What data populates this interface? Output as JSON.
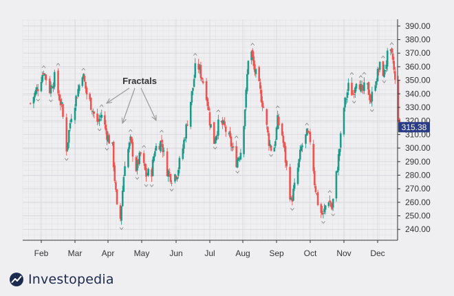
{
  "brand": {
    "name": "Investopedia",
    "logo": "investopedia-logo-icon"
  },
  "chart_data": {
    "type": "candlestick",
    "title": "",
    "xlabel": "",
    "ylabel": "",
    "x_ticks": [
      "Feb",
      "Mar",
      "Apr",
      "May",
      "Jun",
      "Jul",
      "Aug",
      "Sep",
      "Oct",
      "Nov",
      "Dec"
    ],
    "y_ticks": [
      240,
      250,
      260,
      270,
      280,
      290,
      300,
      310,
      320,
      330,
      340,
      350,
      360,
      370,
      380,
      390
    ],
    "ylim": [
      232,
      395
    ],
    "grid": true,
    "up_color": "#1f9a8a",
    "down_color": "#ef5350",
    "last_price": 315.38,
    "last_price_label": "315.38",
    "annotation": {
      "text": "Fractals"
    },
    "price_path": [
      [
        "2021-01-22",
        333
      ],
      [
        "2021-01-29",
        345
      ],
      [
        "2021-02-03",
        357
      ],
      [
        "2021-02-08",
        343
      ],
      [
        "2021-02-12",
        352
      ],
      [
        "2021-02-18",
        330
      ],
      [
        "2021-02-22",
        300
      ],
      [
        "2021-02-26",
        325
      ],
      [
        "2021-03-03",
        340
      ],
      [
        "2021-03-08",
        356
      ],
      [
        "2021-03-12",
        340
      ],
      [
        "2021-03-17",
        330
      ],
      [
        "2021-03-22",
        318
      ],
      [
        "2021-03-26",
        325
      ],
      [
        "2021-03-31",
        310
      ],
      [
        "2021-04-05",
        300
      ],
      [
        "2021-04-09",
        255
      ],
      [
        "2021-04-12",
        248
      ],
      [
        "2021-04-16",
        290
      ],
      [
        "2021-04-21",
        305
      ],
      [
        "2021-04-26",
        285
      ],
      [
        "2021-04-30",
        295
      ],
      [
        "2021-05-05",
        280
      ],
      [
        "2021-05-10",
        283
      ],
      [
        "2021-05-13",
        300
      ],
      [
        "2021-05-19",
        305
      ],
      [
        "2021-05-23",
        285
      ],
      [
        "2021-05-28",
        278
      ],
      [
        "2021-06-02",
        282
      ],
      [
        "2021-06-07",
        300
      ],
      [
        "2021-06-11",
        320
      ],
      [
        "2021-06-16",
        345
      ],
      [
        "2021-06-19",
        365
      ],
      [
        "2021-06-24",
        352
      ],
      [
        "2021-06-28",
        340
      ],
      [
        "2021-07-01",
        320
      ],
      [
        "2021-07-05",
        305
      ],
      [
        "2021-07-10",
        320
      ],
      [
        "2021-07-15",
        315
      ],
      [
        "2021-07-20",
        305
      ],
      [
        "2021-07-26",
        290
      ],
      [
        "2021-07-31",
        300
      ],
      [
        "2021-08-04",
        340
      ],
      [
        "2021-08-07",
        380
      ],
      [
        "2021-08-11",
        360
      ],
      [
        "2021-08-16",
        345
      ],
      [
        "2021-08-20",
        330
      ],
      [
        "2021-08-25",
        305
      ],
      [
        "2021-08-29",
        295
      ],
      [
        "2021-09-02",
        320
      ],
      [
        "2021-09-06",
        310
      ],
      [
        "2021-09-10",
        285
      ],
      [
        "2021-09-14",
        260
      ],
      [
        "2021-09-18",
        275
      ],
      [
        "2021-09-23",
        300
      ],
      [
        "2021-09-28",
        310
      ],
      [
        "2021-10-02",
        305
      ],
      [
        "2021-10-05",
        275
      ],
      [
        "2021-10-09",
        255
      ],
      [
        "2021-10-13",
        250
      ],
      [
        "2021-10-17",
        265
      ],
      [
        "2021-10-21",
        255
      ],
      [
        "2021-10-25",
        280
      ],
      [
        "2021-10-28",
        300
      ],
      [
        "2021-11-01",
        330
      ],
      [
        "2021-11-05",
        345
      ],
      [
        "2021-11-09",
        340
      ],
      [
        "2021-11-13",
        355
      ],
      [
        "2021-11-17",
        340
      ],
      [
        "2021-11-21",
        348
      ],
      [
        "2021-11-25",
        335
      ],
      [
        "2021-11-29",
        350
      ],
      [
        "2021-12-03",
        360
      ],
      [
        "2021-12-07",
        355
      ],
      [
        "2021-12-11",
        372
      ],
      [
        "2021-12-15",
        365
      ],
      [
        "2021-12-18",
        340
      ],
      [
        "2021-12-21",
        315.38
      ]
    ]
  }
}
